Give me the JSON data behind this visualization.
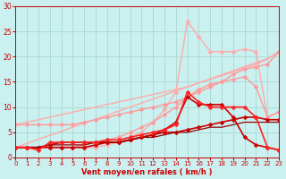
{
  "bg_color": "#caf0f0",
  "grid_color": "#aad8d0",
  "xlabel": "Vent moyen/en rafales ( km/h )",
  "xlabel_color": "#cc0000",
  "tick_color": "#cc0000",
  "xlim": [
    0,
    23
  ],
  "ylim": [
    0,
    30
  ],
  "xticks": [
    0,
    1,
    2,
    3,
    4,
    5,
    6,
    7,
    8,
    9,
    10,
    11,
    12,
    13,
    14,
    15,
    16,
    17,
    18,
    19,
    20,
    21,
    22,
    23
  ],
  "yticks": [
    0,
    5,
    10,
    15,
    20,
    25,
    30
  ],
  "lines": [
    {
      "x": [
        0,
        1,
        2,
        3,
        4,
        5,
        6,
        7,
        8,
        9,
        10,
        11,
        12,
        13,
        14,
        15,
        16,
        17,
        18,
        19,
        20,
        21,
        22,
        23
      ],
      "y": [
        2,
        2.8,
        3.6,
        4.4,
        5.2,
        6,
        6.8,
        7.6,
        8.4,
        9.2,
        10,
        10.8,
        11.6,
        12.4,
        13.2,
        14,
        14.8,
        15.6,
        16.4,
        17.2,
        18,
        18.8,
        19.6,
        21
      ],
      "color": "#ffaaaa",
      "lw": 1.0,
      "marker": null,
      "ms": 0
    },
    {
      "x": [
        0,
        1,
        2,
        3,
        4,
        5,
        6,
        7,
        8,
        9,
        10,
        11,
        12,
        13,
        14,
        15,
        16,
        17,
        18,
        19,
        20,
        21,
        22,
        23
      ],
      "y": [
        6.5,
        7,
        7.5,
        8,
        8.5,
        9,
        9.5,
        10,
        10.5,
        11,
        11.5,
        12,
        12.5,
        13,
        13.5,
        14,
        14.8,
        15.5,
        16.2,
        17,
        17.8,
        18.5,
        19.5,
        21
      ],
      "color": "#ffaaaa",
      "lw": 1.0,
      "marker": null,
      "ms": 0
    },
    {
      "x": [
        0,
        1,
        2,
        3,
        4,
        5,
        6,
        7,
        8,
        9,
        10,
        11,
        12,
        13,
        14,
        15,
        16,
        17,
        18,
        19,
        20,
        21,
        22,
        23
      ],
      "y": [
        2,
        2,
        2,
        2,
        2,
        2,
        2,
        2,
        2.5,
        3,
        4,
        5,
        7,
        9.5,
        13,
        27,
        24,
        21,
        21,
        21,
        21.5,
        21,
        8,
        9
      ],
      "color": "#ffaaaa",
      "lw": 1.0,
      "marker": "D",
      "ms": 2.5
    },
    {
      "x": [
        0,
        1,
        2,
        3,
        4,
        5,
        6,
        7,
        8,
        9,
        10,
        11,
        12,
        13,
        14,
        15,
        16,
        17,
        18,
        19,
        20,
        21,
        22,
        23
      ],
      "y": [
        2,
        2,
        2,
        2,
        2,
        2,
        2.5,
        3,
        3.5,
        4,
        5,
        6,
        7,
        8.5,
        10,
        12,
        13.5,
        14.5,
        15,
        15.5,
        16,
        14,
        8,
        9
      ],
      "color": "#ff9999",
      "lw": 1.0,
      "marker": "D",
      "ms": 2.5
    },
    {
      "x": [
        0,
        1,
        2,
        3,
        4,
        5,
        6,
        7,
        8,
        9,
        10,
        11,
        12,
        13,
        14,
        15,
        16,
        17,
        18,
        19,
        20,
        21,
        22,
        23
      ],
      "y": [
        6.5,
        6.5,
        6.5,
        6.5,
        6.5,
        6.5,
        7,
        7.5,
        8,
        8.5,
        9,
        9.5,
        10,
        10.5,
        11,
        12,
        13,
        14,
        15,
        16.5,
        17.5,
        18,
        18.5,
        21
      ],
      "color": "#ff9999",
      "lw": 1.0,
      "marker": "D",
      "ms": 2.5
    },
    {
      "x": [
        0,
        1,
        2,
        3,
        4,
        5,
        6,
        7,
        8,
        9,
        10,
        11,
        12,
        13,
        14,
        15,
        16,
        17,
        18,
        19,
        20,
        21,
        22,
        23
      ],
      "y": [
        2,
        2,
        2,
        2,
        2,
        2,
        2,
        2.5,
        3,
        3,
        3.5,
        4,
        4.5,
        5.5,
        7,
        12,
        10.5,
        10.5,
        10.5,
        8,
        4,
        2.5,
        2,
        1.5
      ],
      "color": "#cc0000",
      "lw": 1.2,
      "marker": "D",
      "ms": 2.5
    },
    {
      "x": [
        0,
        1,
        2,
        3,
        4,
        5,
        6,
        7,
        8,
        9,
        10,
        11,
        12,
        13,
        14,
        15,
        16,
        17,
        18,
        19,
        20,
        21,
        22,
        23
      ],
      "y": [
        2,
        2,
        2,
        2.5,
        3,
        3,
        3,
        3,
        3,
        3,
        3.5,
        4,
        4.5,
        5,
        5,
        5.5,
        6,
        6.5,
        7,
        7.5,
        8,
        8,
        7.5,
        7.5
      ],
      "color": "#cc0000",
      "lw": 1.2,
      "marker": "D",
      "ms": 2.5
    },
    {
      "x": [
        0,
        1,
        2,
        3,
        4,
        5,
        6,
        7,
        8,
        9,
        10,
        11,
        12,
        13,
        14,
        15,
        16,
        17,
        18,
        19,
        20,
        21,
        22,
        23
      ],
      "y": [
        2,
        2,
        2,
        2.5,
        2.5,
        2.5,
        2.5,
        3,
        3,
        3,
        3.5,
        4,
        4,
        4.5,
        5,
        5,
        5.5,
        6,
        6,
        6.5,
        7,
        7,
        7,
        7
      ],
      "color": "#990000",
      "lw": 0.9,
      "marker": null,
      "ms": 0
    },
    {
      "x": [
        0,
        1,
        2,
        3,
        4,
        5,
        6,
        7,
        8,
        9,
        10,
        11,
        12,
        13,
        14,
        15,
        16,
        17,
        18,
        19,
        20,
        21,
        22,
        23
      ],
      "y": [
        2,
        2,
        1.5,
        3,
        3,
        3,
        3,
        3,
        3.5,
        3.5,
        4,
        4.5,
        5,
        5.5,
        6.5,
        13,
        11,
        10,
        10,
        10,
        10,
        8,
        2,
        1.5
      ],
      "color": "#ff2222",
      "lw": 1.2,
      "marker": "D",
      "ms": 2.5
    }
  ]
}
